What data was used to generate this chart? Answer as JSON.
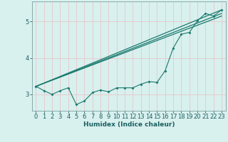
{
  "xlabel": "Humidex (Indice chaleur)",
  "bg_color": "#d8f0ee",
  "grid_color": "#e8c8c8",
  "line_color": "#1a7a6e",
  "spine_color": "#8aaaaa",
  "tick_color": "#1a6060",
  "xlim": [
    -0.5,
    23.5
  ],
  "ylim": [
    2.55,
    5.55
  ],
  "yticks": [
    3,
    4,
    5
  ],
  "xticks": [
    0,
    1,
    2,
    3,
    4,
    5,
    6,
    7,
    8,
    9,
    10,
    11,
    12,
    13,
    14,
    15,
    16,
    17,
    18,
    19,
    20,
    21,
    22,
    23
  ],
  "scatter_x": [
    0,
    1,
    2,
    3,
    4,
    5,
    6,
    7,
    8,
    9,
    10,
    11,
    12,
    13,
    14,
    15,
    16,
    17,
    18,
    19,
    20,
    21,
    22,
    23
  ],
  "scatter_y": [
    3.22,
    3.1,
    3.0,
    3.1,
    3.18,
    2.72,
    2.82,
    3.05,
    3.12,
    3.07,
    3.18,
    3.18,
    3.18,
    3.28,
    3.35,
    3.33,
    3.65,
    4.27,
    4.65,
    4.7,
    5.02,
    5.22,
    5.15,
    5.32
  ],
  "line1_x": [
    0,
    23
  ],
  "line1_y": [
    3.22,
    5.32
  ],
  "line2_x": [
    0,
    23
  ],
  "line2_y": [
    3.22,
    5.22
  ],
  "line3_x": [
    0,
    23
  ],
  "line3_y": [
    3.22,
    5.15
  ]
}
